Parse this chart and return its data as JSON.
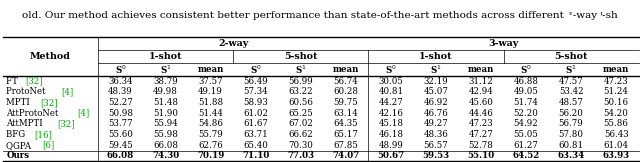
{
  "title_text": "old. Our method achieves consistent better performance than state-of-the-art methods across different  ᵋ-way ᵎ-sh",
  "methods": [
    [
      "FT ",
      "[32]"
    ],
    [
      "ProtoNet ",
      "[4]"
    ],
    [
      "MPTI ",
      "[32]"
    ],
    [
      "AttProtoNet ",
      "[4]"
    ],
    [
      "AttMPTI ",
      "[32]"
    ],
    [
      "BFG ",
      "[16]"
    ],
    [
      "QGPA ",
      "[6]"
    ],
    [
      "Ours",
      ""
    ]
  ],
  "data": [
    [
      36.34,
      38.79,
      37.57,
      56.49,
      56.99,
      56.74,
      30.05,
      32.19,
      31.12,
      46.88,
      47.57,
      47.23
    ],
    [
      48.39,
      49.98,
      49.19,
      57.34,
      63.22,
      60.28,
      40.81,
      45.07,
      42.94,
      49.05,
      53.42,
      51.24
    ],
    [
      52.27,
      51.48,
      51.88,
      58.93,
      60.56,
      59.75,
      44.27,
      46.92,
      45.6,
      51.74,
      48.57,
      50.16
    ],
    [
      50.98,
      51.9,
      51.44,
      61.02,
      65.25,
      63.14,
      42.16,
      46.76,
      44.46,
      52.2,
      56.2,
      54.2
    ],
    [
      53.77,
      55.94,
      54.86,
      61.67,
      67.02,
      64.35,
      45.18,
      49.27,
      47.23,
      54.92,
      56.79,
      55.86
    ],
    [
      55.6,
      55.98,
      55.79,
      63.71,
      66.62,
      65.17,
      46.18,
      48.36,
      47.27,
      55.05,
      57.8,
      56.43
    ],
    [
      59.45,
      66.08,
      62.76,
      65.4,
      70.3,
      67.85,
      48.99,
      56.57,
      52.78,
      61.27,
      60.81,
      61.04
    ],
    [
      66.08,
      74.3,
      70.19,
      71.1,
      77.03,
      74.07,
      50.67,
      59.53,
      55.1,
      64.52,
      63.34,
      63.93
    ]
  ],
  "cite_color": "#00aa00",
  "text_color": "#000000",
  "bg_color": "#ffffff",
  "figsize": [
    6.4,
    1.62
  ],
  "dpi": 100
}
